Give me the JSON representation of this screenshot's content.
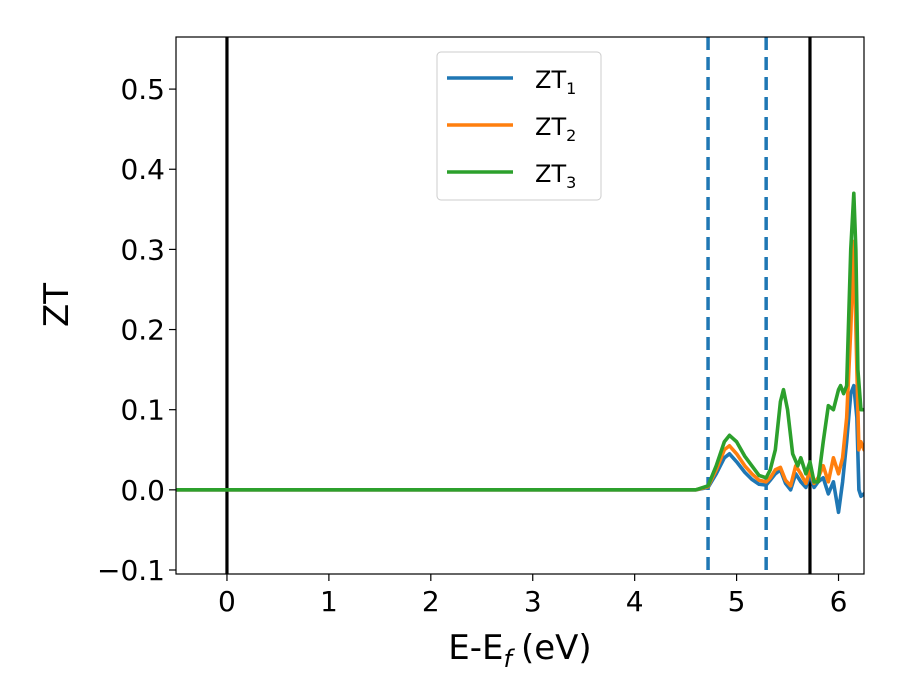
{
  "chart_data": {
    "type": "line",
    "xlabel": "E-E",
    "xlabel_sub": "f",
    "xlabel_unit": "(eV)",
    "ylabel": "ZT",
    "xlim": [
      -0.5,
      6.25
    ],
    "ylim": [
      -0.105,
      0.565
    ],
    "grid": false,
    "legend_position": "top-center",
    "xticks": [
      0,
      1,
      2,
      3,
      4,
      5,
      6
    ],
    "xtick_labels": [
      "0",
      "1",
      "2",
      "3",
      "4",
      "5",
      "6"
    ],
    "yticks": [
      -0.1,
      0.0,
      0.1,
      0.2,
      0.3,
      0.4,
      0.5
    ],
    "ytick_labels": [
      "−0.1",
      "0.0",
      "0.1",
      "0.2",
      "0.3",
      "0.4",
      "0.5"
    ],
    "vertical_lines": [
      {
        "x": 0.0,
        "style": "solid",
        "color": "#000000"
      },
      {
        "x": 4.72,
        "style": "dashed",
        "color": "#1f77b4"
      },
      {
        "x": 5.29,
        "style": "dashed",
        "color": "#1f77b4"
      },
      {
        "x": 5.72,
        "style": "solid",
        "color": "#000000"
      }
    ],
    "series": [
      {
        "name": "ZT",
        "name_sub": "1",
        "color": "#1f77b4",
        "x": [
          -0.5,
          4.6,
          4.72,
          4.8,
          4.88,
          4.93,
          5.0,
          5.08,
          5.15,
          5.22,
          5.29,
          5.33,
          5.38,
          5.43,
          5.48,
          5.53,
          5.58,
          5.63,
          5.68,
          5.72,
          5.76,
          5.8,
          5.85,
          5.9,
          5.95,
          6.0,
          6.04,
          6.08,
          6.12,
          6.15,
          6.18,
          6.2,
          6.22,
          6.25
        ],
        "y": [
          0.0,
          0.0,
          0.003,
          0.02,
          0.04,
          0.045,
          0.035,
          0.022,
          0.013,
          0.007,
          0.006,
          0.012,
          0.02,
          0.025,
          0.008,
          0.0,
          0.02,
          0.01,
          0.003,
          0.02,
          0.003,
          0.01,
          0.015,
          -0.005,
          0.01,
          -0.028,
          0.01,
          0.06,
          0.12,
          0.13,
          0.09,
          0.0,
          -0.008,
          -0.005
        ]
      },
      {
        "name": "ZT",
        "name_sub": "2",
        "color": "#ff7f0e",
        "x": [
          -0.5,
          4.6,
          4.72,
          4.8,
          4.88,
          4.93,
          5.0,
          5.08,
          5.15,
          5.22,
          5.29,
          5.33,
          5.38,
          5.43,
          5.48,
          5.53,
          5.58,
          5.63,
          5.68,
          5.72,
          5.76,
          5.8,
          5.85,
          5.9,
          5.95,
          6.0,
          6.04,
          6.08,
          6.12,
          6.15,
          6.18,
          6.2,
          6.22,
          6.25
        ],
        "y": [
          0.0,
          0.0,
          0.004,
          0.025,
          0.05,
          0.055,
          0.045,
          0.03,
          0.02,
          0.012,
          0.01,
          0.015,
          0.025,
          0.028,
          0.012,
          0.005,
          0.03,
          0.02,
          0.008,
          0.025,
          0.008,
          0.015,
          0.03,
          0.01,
          0.04,
          0.02,
          0.04,
          0.09,
          0.2,
          0.31,
          0.15,
          0.05,
          0.06,
          0.05
        ]
      },
      {
        "name": "ZT",
        "name_sub": "3",
        "color": "#2ca02c",
        "x": [
          -0.5,
          4.6,
          4.72,
          4.8,
          4.88,
          4.93,
          5.0,
          5.08,
          5.15,
          5.22,
          5.29,
          5.33,
          5.38,
          5.43,
          5.46,
          5.5,
          5.55,
          5.6,
          5.63,
          5.68,
          5.72,
          5.76,
          5.8,
          5.85,
          5.9,
          5.95,
          6.0,
          6.02,
          6.05,
          6.08,
          6.12,
          6.15,
          6.17,
          6.19,
          6.22,
          6.25
        ],
        "y": [
          0.0,
          0.0,
          0.005,
          0.03,
          0.06,
          0.068,
          0.06,
          0.042,
          0.03,
          0.018,
          0.015,
          0.025,
          0.05,
          0.11,
          0.125,
          0.1,
          0.045,
          0.03,
          0.04,
          0.02,
          0.035,
          0.01,
          0.01,
          0.06,
          0.105,
          0.1,
          0.125,
          0.13,
          0.12,
          0.13,
          0.3,
          0.37,
          0.3,
          0.15,
          0.1,
          0.1
        ]
      }
    ]
  }
}
